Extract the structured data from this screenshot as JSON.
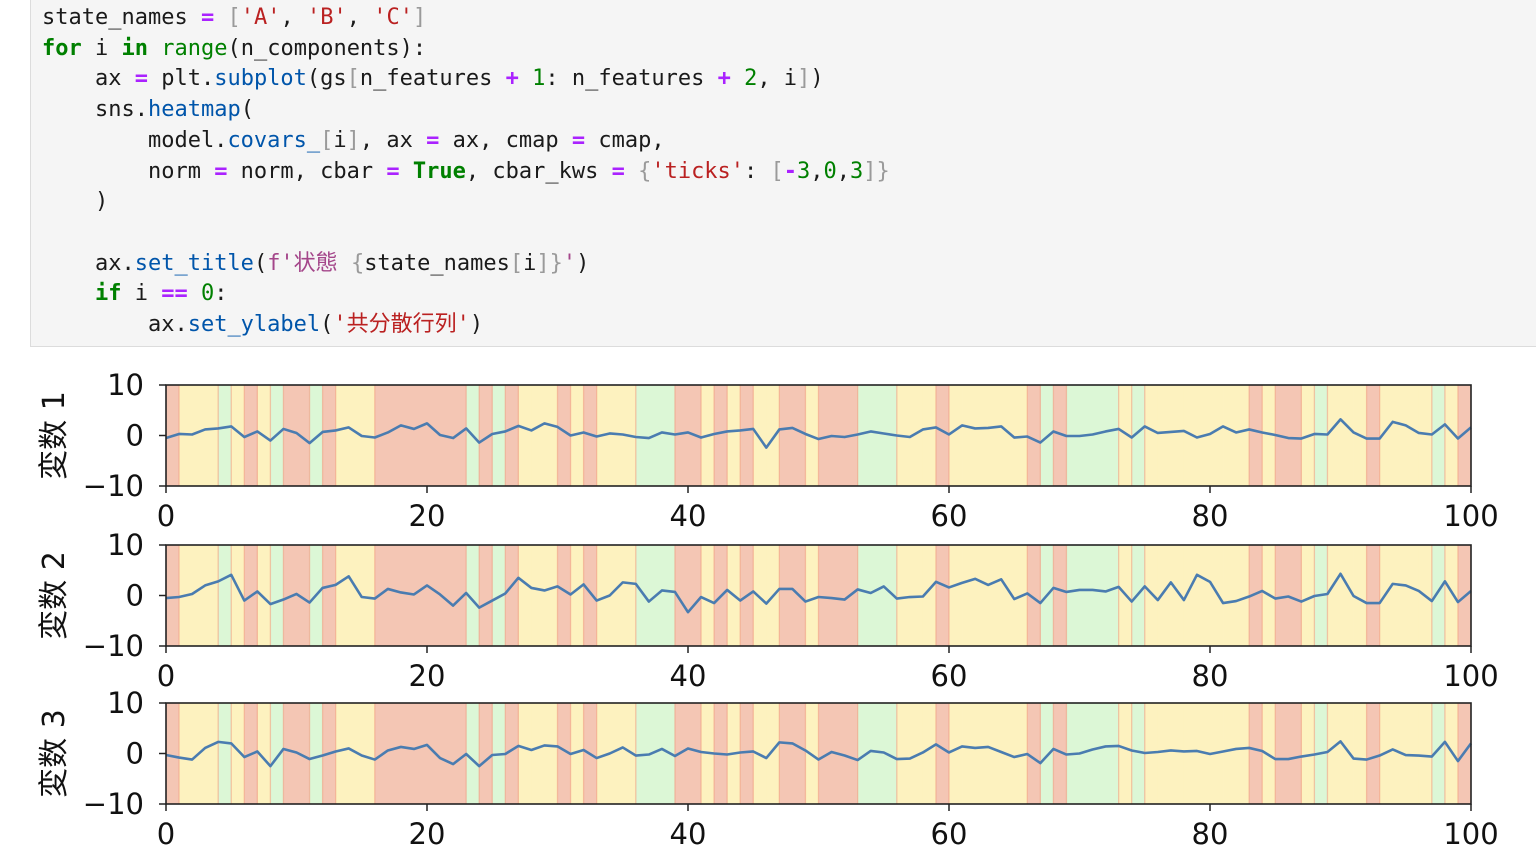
{
  "code_cell": {
    "lines": [
      [
        [
          "state_names",
          ""
        ],
        [
          " ",
          ""
        ],
        [
          "=",
          "op"
        ],
        [
          " ",
          ""
        ],
        [
          "[",
          "br"
        ],
        [
          "'A'",
          "str"
        ],
        [
          ", ",
          ""
        ],
        [
          "'B'",
          "str"
        ],
        [
          ", ",
          ""
        ],
        [
          "'C'",
          "str"
        ],
        [
          "]",
          "br"
        ]
      ],
      [
        [
          "for",
          "kw"
        ],
        [
          " i ",
          ""
        ],
        [
          "in",
          "kw"
        ],
        [
          " ",
          ""
        ],
        [
          "range",
          "bi"
        ],
        [
          "(n_components):",
          ""
        ]
      ],
      [
        [
          "    ax ",
          ""
        ],
        [
          "=",
          "op"
        ],
        [
          " plt.",
          ""
        ],
        [
          "subplot",
          "fn"
        ],
        [
          "(gs",
          ""
        ],
        [
          "[",
          "br"
        ],
        [
          "n_features ",
          ""
        ],
        [
          "+",
          "op"
        ],
        [
          " ",
          ""
        ],
        [
          "1",
          "num"
        ],
        [
          ": n_features ",
          ""
        ],
        [
          "+",
          "op"
        ],
        [
          " ",
          ""
        ],
        [
          "2",
          "num"
        ],
        [
          ", i",
          ""
        ],
        [
          "]",
          "br"
        ],
        [
          ")",
          ""
        ]
      ],
      [
        [
          "    sns.",
          ""
        ],
        [
          "heatmap",
          "fn"
        ],
        [
          "(",
          ""
        ]
      ],
      [
        [
          "        model.",
          ""
        ],
        [
          "covars_",
          "fn"
        ],
        [
          "[",
          "br"
        ],
        [
          "i",
          ""
        ],
        [
          "]",
          "br"
        ],
        [
          ", ax ",
          ""
        ],
        [
          "=",
          "op"
        ],
        [
          " ax, cmap ",
          ""
        ],
        [
          "=",
          "op"
        ],
        [
          " cmap,",
          ""
        ]
      ],
      [
        [
          "        norm ",
          ""
        ],
        [
          "=",
          "op"
        ],
        [
          " norm, cbar ",
          ""
        ],
        [
          "=",
          "op"
        ],
        [
          " ",
          ""
        ],
        [
          "True",
          "kw"
        ],
        [
          ", cbar_kws ",
          ""
        ],
        [
          "=",
          "op"
        ],
        [
          " ",
          ""
        ],
        [
          "{",
          "br"
        ],
        [
          "'ticks'",
          "str"
        ],
        [
          ": ",
          ""
        ],
        [
          "[",
          "br"
        ],
        [
          "-",
          "op"
        ],
        [
          "3",
          "num"
        ],
        [
          ",",
          ""
        ],
        [
          "0",
          "num"
        ],
        [
          ",",
          ""
        ],
        [
          "3",
          "num"
        ],
        [
          "]}",
          "br"
        ]
      ],
      [
        [
          "    )",
          ""
        ]
      ],
      [
        [
          "",
          ""
        ]
      ],
      [
        [
          "    ax.",
          ""
        ],
        [
          "set_title",
          "fn"
        ],
        [
          "(",
          ""
        ],
        [
          "f'状態 ",
          "fs"
        ],
        [
          "{",
          "br"
        ],
        [
          "state_names",
          ""
        ],
        [
          "[",
          "br"
        ],
        [
          "i",
          ""
        ],
        [
          "]}",
          "br"
        ],
        [
          "'",
          "fs"
        ],
        [
          ")",
          ""
        ]
      ],
      [
        [
          "    ",
          ""
        ],
        [
          "if",
          "kw"
        ],
        [
          " i ",
          ""
        ],
        [
          "==",
          "op"
        ],
        [
          " ",
          ""
        ],
        [
          "0",
          "num"
        ],
        [
          ":",
          ""
        ]
      ],
      [
        [
          "        ax.",
          ""
        ],
        [
          "set_ylabel",
          "fn"
        ],
        [
          "(",
          ""
        ],
        [
          "'共分散行列'",
          "str"
        ],
        [
          ")",
          ""
        ]
      ]
    ]
  },
  "colors": {
    "state_A": "#f4c6b4",
    "state_B": "#fdf2bf",
    "state_C": "#dcf7d6",
    "boundary": "#f09a80",
    "line": "#4a7cb0",
    "code_bg": "#f5f5f5"
  },
  "chart_data": [
    {
      "type": "line",
      "ylabel": "変数 1",
      "xlim": [
        0,
        100
      ],
      "ylim": [
        -10,
        10
      ],
      "xticks": [
        0,
        20,
        40,
        60,
        80,
        100
      ],
      "yticks": [
        10,
        0,
        -10
      ],
      "x_tick_labels": [
        "0",
        "20",
        "40",
        "60",
        "80",
        "100"
      ],
      "y_tick_labels": [
        "10",
        "0",
        "−10"
      ],
      "background_states": [
        "A",
        "B",
        "B",
        "B",
        "C",
        "B",
        "A",
        "B",
        "C",
        "A",
        "A",
        "C",
        "A",
        "B",
        "B",
        "B",
        "A",
        "A",
        "A",
        "A",
        "A",
        "A",
        "A",
        "C",
        "A",
        "C",
        "A",
        "B",
        "B",
        "B",
        "A",
        "B",
        "A",
        "B",
        "B",
        "B",
        "C",
        "C",
        "C",
        "A",
        "A",
        "B",
        "A",
        "B",
        "A",
        "B",
        "B",
        "A",
        "A",
        "B",
        "A",
        "A",
        "A",
        "C",
        "C",
        "C",
        "B",
        "B",
        "B",
        "A",
        "B",
        "B",
        "B",
        "B",
        "B",
        "B",
        "A",
        "C",
        "A",
        "C",
        "C",
        "C",
        "C",
        "B",
        "C",
        "B",
        "B",
        "B",
        "B",
        "B",
        "B",
        "B",
        "B",
        "A",
        "B",
        "A",
        "A",
        "B",
        "C",
        "B",
        "B",
        "B",
        "A",
        "B",
        "B",
        "B",
        "B",
        "C",
        "B",
        "A"
      ],
      "values": [
        -0.5,
        0.3,
        0.2,
        1.2,
        1.4,
        1.8,
        -0.3,
        0.8,
        -1.0,
        1.3,
        0.5,
        -1.5,
        0.7,
        1.0,
        1.6,
        -0.1,
        -0.4,
        0.6,
        2.0,
        1.3,
        2.4,
        0.1,
        -0.5,
        1.4,
        -1.4,
        0.3,
        0.8,
        1.9,
        1.0,
        2.4,
        1.7,
        0.0,
        0.6,
        -0.2,
        0.4,
        0.2,
        -0.3,
        -0.5,
        0.6,
        0.2,
        0.6,
        -0.4,
        0.3,
        0.8,
        1.0,
        1.3,
        -2.4,
        1.2,
        1.5,
        0.3,
        -0.7,
        -0.1,
        -0.3,
        0.2,
        0.8,
        0.4,
        0.0,
        -0.3,
        1.2,
        1.6,
        0.2,
        2.0,
        1.4,
        1.5,
        1.8,
        -0.4,
        -0.2,
        -1.4,
        0.8,
        -0.1,
        -0.1,
        0.2,
        0.8,
        1.3,
        -0.4,
        1.8,
        0.5,
        0.7,
        0.9,
        -0.4,
        0.3,
        1.8,
        0.6,
        1.2,
        0.6,
        0.1,
        -0.5,
        -0.6,
        0.3,
        0.2,
        3.2,
        0.6,
        -0.6,
        -0.6,
        2.7,
        2.0,
        0.5,
        0.2,
        2.2,
        -0.6,
        1.6
      ]
    },
    {
      "type": "line",
      "ylabel": "変数 2",
      "xlim": [
        0,
        100
      ],
      "ylim": [
        -10,
        10
      ],
      "xticks": [
        0,
        20,
        40,
        60,
        80,
        100
      ],
      "yticks": [
        10,
        0,
        -10
      ],
      "x_tick_labels": [
        "0",
        "20",
        "40",
        "60",
        "80",
        "100"
      ],
      "y_tick_labels": [
        "10",
        "0",
        "−10"
      ],
      "background_states": [
        "A",
        "B",
        "B",
        "B",
        "C",
        "B",
        "A",
        "B",
        "C",
        "A",
        "A",
        "C",
        "A",
        "B",
        "B",
        "B",
        "A",
        "A",
        "A",
        "A",
        "A",
        "A",
        "A",
        "C",
        "A",
        "C",
        "A",
        "B",
        "B",
        "B",
        "A",
        "B",
        "A",
        "B",
        "B",
        "B",
        "C",
        "C",
        "C",
        "A",
        "A",
        "B",
        "A",
        "B",
        "A",
        "B",
        "B",
        "A",
        "A",
        "B",
        "A",
        "A",
        "A",
        "C",
        "C",
        "C",
        "B",
        "B",
        "B",
        "A",
        "B",
        "B",
        "B",
        "B",
        "B",
        "B",
        "A",
        "C",
        "A",
        "C",
        "C",
        "C",
        "C",
        "B",
        "C",
        "B",
        "B",
        "B",
        "B",
        "B",
        "B",
        "B",
        "B",
        "A",
        "B",
        "A",
        "A",
        "B",
        "C",
        "B",
        "B",
        "B",
        "A",
        "B",
        "B",
        "B",
        "B",
        "C",
        "B",
        "A"
      ],
      "values": [
        -0.5,
        -0.3,
        0.3,
        2.0,
        2.8,
        4.1,
        -1.0,
        0.8,
        -1.7,
        -0.8,
        0.3,
        -1.4,
        1.5,
        2.1,
        3.8,
        -0.3,
        -0.6,
        1.3,
        0.6,
        0.2,
        2.0,
        0.2,
        -2.0,
        0.5,
        -2.4,
        -1.0,
        0.4,
        3.5,
        1.5,
        1.0,
        1.8,
        0.2,
        2.2,
        -1.0,
        0.0,
        2.6,
        2.3,
        -1.2,
        1.0,
        0.7,
        -3.3,
        -0.3,
        -1.5,
        1.1,
        -1.0,
        0.8,
        -1.6,
        1.3,
        1.3,
        -1.2,
        -0.3,
        -0.5,
        -0.8,
        1.2,
        0.5,
        1.8,
        -0.6,
        -0.3,
        -0.2,
        2.7,
        1.6,
        2.5,
        3.3,
        2.1,
        3.2,
        -0.7,
        0.4,
        -1.5,
        1.5,
        0.7,
        1.1,
        1.1,
        0.8,
        1.7,
        -1.2,
        1.8,
        -0.9,
        2.6,
        -0.9,
        4.1,
        2.7,
        -1.5,
        -1.1,
        -0.2,
        0.9,
        -0.6,
        -0.2,
        -1.2,
        -0.1,
        0.3,
        4.3,
        -0.1,
        -1.5,
        -1.5,
        2.3,
        2.0,
        0.9,
        -1.1,
        2.8,
        -1.3,
        0.9
      ]
    },
    {
      "type": "line",
      "ylabel": "変数 3",
      "xlim": [
        0,
        100
      ],
      "ylim": [
        -10,
        10
      ],
      "xticks": [
        0,
        20,
        40,
        60,
        80,
        100
      ],
      "yticks": [
        10,
        0,
        -10
      ],
      "x_tick_labels": [
        "0",
        "20",
        "40",
        "60",
        "80",
        "100"
      ],
      "y_tick_labels": [
        "10",
        "0",
        "−10"
      ],
      "background_states": [
        "A",
        "B",
        "B",
        "B",
        "C",
        "B",
        "A",
        "B",
        "C",
        "A",
        "A",
        "C",
        "A",
        "B",
        "B",
        "B",
        "A",
        "A",
        "A",
        "A",
        "A",
        "A",
        "A",
        "C",
        "A",
        "C",
        "A",
        "B",
        "B",
        "B",
        "A",
        "B",
        "A",
        "B",
        "B",
        "B",
        "C",
        "C",
        "C",
        "A",
        "A",
        "B",
        "A",
        "B",
        "A",
        "B",
        "B",
        "A",
        "A",
        "B",
        "A",
        "A",
        "A",
        "C",
        "C",
        "C",
        "B",
        "B",
        "B",
        "A",
        "B",
        "B",
        "B",
        "B",
        "B",
        "B",
        "A",
        "C",
        "A",
        "C",
        "C",
        "C",
        "C",
        "B",
        "C",
        "B",
        "B",
        "B",
        "B",
        "B",
        "B",
        "B",
        "B",
        "A",
        "B",
        "A",
        "A",
        "B",
        "C",
        "B",
        "B",
        "B",
        "A",
        "B",
        "B",
        "B",
        "B",
        "C",
        "B",
        "A"
      ],
      "values": [
        -0.3,
        -0.8,
        -1.2,
        1.1,
        2.3,
        2.0,
        -0.7,
        0.4,
        -2.5,
        0.9,
        0.2,
        -1.1,
        -0.4,
        0.4,
        1.0,
        -0.4,
        -1.2,
        0.6,
        1.3,
        0.9,
        1.7,
        -0.9,
        -2.1,
        -0.1,
        -2.5,
        -0.3,
        -0.1,
        1.5,
        0.7,
        1.6,
        1.4,
        -0.1,
        0.7,
        -0.9,
        0.0,
        1.2,
        -0.4,
        -0.2,
        0.9,
        -0.5,
        1.0,
        0.3,
        0.0,
        -0.2,
        0.2,
        0.4,
        -0.9,
        2.2,
        2.0,
        0.6,
        -1.2,
        0.3,
        -0.4,
        -1.3,
        0.5,
        0.2,
        -1.1,
        -1.0,
        0.2,
        1.8,
        0.2,
        1.4,
        1.1,
        1.3,
        0.3,
        -0.7,
        -0.1,
        -1.9,
        0.9,
        -0.2,
        0.0,
        0.8,
        1.4,
        1.5,
        0.6,
        0.1,
        0.3,
        0.6,
        0.4,
        0.5,
        -0.1,
        0.4,
        0.9,
        1.1,
        0.5,
        -1.1,
        -1.1,
        -0.6,
        -0.2,
        0.3,
        2.4,
        -1.0,
        -1.2,
        -0.4,
        0.8,
        -0.3,
        -0.4,
        -0.6,
        2.3,
        -1.5,
        2.0
      ]
    }
  ]
}
